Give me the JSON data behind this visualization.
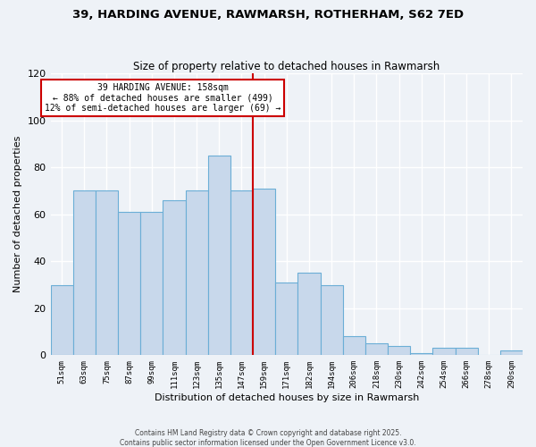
{
  "title": "39, HARDING AVENUE, RAWMARSH, ROTHERHAM, S62 7ED",
  "subtitle": "Size of property relative to detached houses in Rawmarsh",
  "xlabel": "Distribution of detached houses by size in Rawmarsh",
  "ylabel": "Number of detached properties",
  "bar_color": "#c8d8eb",
  "bar_edge_color": "#6baed6",
  "bin_labels": [
    "51sqm",
    "63sqm",
    "75sqm",
    "87sqm",
    "99sqm",
    "111sqm",
    "123sqm",
    "135sqm",
    "147sqm",
    "159sqm",
    "171sqm",
    "182sqm",
    "194sqm",
    "206sqm",
    "218sqm",
    "230sqm",
    "242sqm",
    "254sqm",
    "266sqm",
    "278sqm",
    "290sqm"
  ],
  "bar_heights": [
    30,
    70,
    70,
    61,
    61,
    66,
    70,
    85,
    70,
    71,
    31,
    35,
    30,
    8,
    5,
    4,
    1,
    3,
    3,
    0,
    2
  ],
  "ylim": [
    0,
    120
  ],
  "yticks": [
    0,
    20,
    40,
    60,
    80,
    100,
    120
  ],
  "vline_index": 9,
  "vline_color": "#cc0000",
  "annotation_title": "39 HARDING AVENUE: 158sqm",
  "annotation_line1": "← 88% of detached houses are smaller (499)",
  "annotation_line2": "12% of semi-detached houses are larger (69) →",
  "annotation_box_color": "#ffffff",
  "annotation_border_color": "#cc0000",
  "footer1": "Contains HM Land Registry data © Crown copyright and database right 2025.",
  "footer2": "Contains public sector information licensed under the Open Government Licence v3.0.",
  "background_color": "#eef2f7",
  "grid_color": "#ffffff",
  "grid_linewidth": 1.0
}
